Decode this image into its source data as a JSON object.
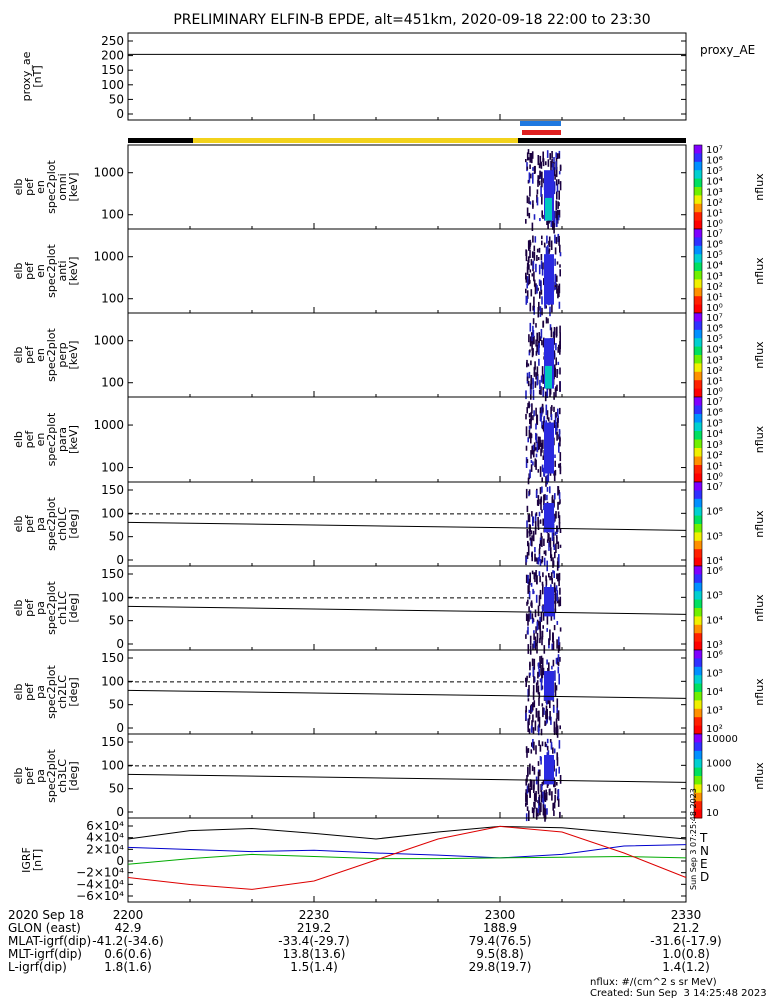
{
  "title": "PRELIMINARY ELFIN-B EPDE, alt=451km, 2020-09-18 22:00 to 23:30",
  "chart_data": [
    {
      "type": "line",
      "panel": "proxy_ae",
      "ylabel": [
        "proxy_ae",
        "[nT]"
      ],
      "legend": "proxy_AE",
      "yticks": [
        "250",
        "200",
        "150",
        "100",
        "50",
        "0"
      ],
      "ylim": [
        0,
        260
      ],
      "series": [
        {
          "x": [
            "22:00",
            "23:30"
          ],
          "values": [
            196,
            196
          ],
          "color": "#000000"
        }
      ]
    },
    {
      "type": "heatmap",
      "panel": "omni",
      "ylabel": [
        "elb",
        "pef",
        "en",
        "spec2plot",
        "omni",
        "[keV]"
      ],
      "yticks": [
        "1000",
        "100"
      ],
      "yscale": "log",
      "ylim": [
        55,
        7000
      ],
      "colorbar": {
        "label": "nflux",
        "ticks": [
          "10⁷",
          "10⁶",
          "10⁵",
          "10⁴",
          "10³",
          "10²",
          "10¹",
          "10⁰"
        ]
      }
    },
    {
      "type": "heatmap",
      "panel": "anti",
      "ylabel": [
        "elb",
        "pef",
        "en",
        "spec2plot",
        "anti",
        "[keV]"
      ],
      "yticks": [
        "1000",
        "100"
      ],
      "yscale": "log",
      "colorbar": {
        "label": "nflux",
        "ticks": [
          "10⁷",
          "10⁶",
          "10⁵",
          "10⁴",
          "10³",
          "10²",
          "10¹",
          "10⁰"
        ]
      }
    },
    {
      "type": "heatmap",
      "panel": "perp",
      "ylabel": [
        "elb",
        "pef",
        "en",
        "spec2plot",
        "perp",
        "[keV]"
      ],
      "yticks": [
        "1000",
        "100"
      ],
      "yscale": "log",
      "colorbar": {
        "label": "nflux",
        "ticks": [
          "10⁷",
          "10⁶",
          "10⁵",
          "10⁴",
          "10³",
          "10²",
          "10¹",
          "10⁰"
        ]
      }
    },
    {
      "type": "heatmap",
      "panel": "para",
      "ylabel": [
        "elb",
        "pef",
        "en",
        "spec2plot",
        "para",
        "[keV]"
      ],
      "yticks": [
        "1000",
        "100"
      ],
      "yscale": "log",
      "colorbar": {
        "label": "nflux",
        "ticks": [
          "10⁷",
          "10⁶",
          "10⁵",
          "10⁴",
          "10³",
          "10²",
          "10¹",
          "10⁰"
        ]
      }
    },
    {
      "type": "heatmap",
      "panel": "ch0LC",
      "ylabel": [
        "elb",
        "pef",
        "pa",
        "spec2plot",
        "ch0LC",
        "[deg]"
      ],
      "yticks": [
        "150",
        "100",
        "50",
        "0"
      ],
      "ylim": [
        0,
        180
      ],
      "colorbar": {
        "label": "nflux",
        "ticks": [
          "10⁷",
          "10⁶",
          "10⁵",
          "10⁴"
        ]
      }
    },
    {
      "type": "heatmap",
      "panel": "ch1LC",
      "ylabel": [
        "elb",
        "pef",
        "pa",
        "spec2plot",
        "ch1LC",
        "[deg]"
      ],
      "yticks": [
        "150",
        "100",
        "50",
        "0"
      ],
      "ylim": [
        0,
        180
      ],
      "colorbar": {
        "label": "nflux",
        "ticks": [
          "10⁶",
          "10⁵",
          "10⁴",
          "10³"
        ]
      }
    },
    {
      "type": "heatmap",
      "panel": "ch2LC",
      "ylabel": [
        "elb",
        "pef",
        "pa",
        "spec2plot",
        "ch2LC",
        "[deg]"
      ],
      "yticks": [
        "150",
        "100",
        "50",
        "0"
      ],
      "ylim": [
        0,
        180
      ],
      "colorbar": {
        "label": "nflux",
        "ticks": [
          "10⁶",
          "10⁵",
          "10⁴",
          "10³",
          "10²"
        ]
      }
    },
    {
      "type": "heatmap",
      "panel": "ch3LC",
      "ylabel": [
        "elb",
        "pef",
        "pa",
        "spec2plot",
        "ch3LC",
        "[deg]"
      ],
      "yticks": [
        "150",
        "100",
        "50",
        "0"
      ],
      "ylim": [
        0,
        180
      ],
      "colorbar": {
        "label": "nflux",
        "ticks": [
          "10000",
          "1000",
          "100",
          "10"
        ]
      }
    },
    {
      "type": "line",
      "panel": "igrf",
      "ylabel": [
        "IGRF",
        "[nT]"
      ],
      "yticks": [
        "6×10⁴",
        "4×10⁴",
        "2×10⁴",
        "0",
        "−2×10⁴",
        "−4×10⁴",
        "−6×10⁴"
      ],
      "ylim": [
        -60000,
        60000
      ],
      "x": [
        0,
        10,
        20,
        30,
        40,
        50,
        60,
        70,
        80,
        90
      ],
      "legend": [
        "T",
        "N",
        "E",
        "D"
      ],
      "series": [
        {
          "name": "T",
          "color": "#000000",
          "values": [
            30000,
            42000,
            45000,
            38000,
            30000,
            40000,
            48000,
            46000,
            38000,
            30000
          ]
        },
        {
          "name": "N",
          "color": "#0000cc",
          "values": [
            18000,
            15000,
            12000,
            14000,
            10000,
            7000,
            3000,
            8000,
            20000,
            22000
          ]
        },
        {
          "name": "E",
          "color": "#00aa00",
          "values": [
            -6000,
            2000,
            8000,
            5000,
            2000,
            2000,
            3000,
            4000,
            5000,
            3000
          ]
        },
        {
          "name": "D",
          "color": "#dd0000",
          "values": [
            -25000,
            -35000,
            -42000,
            -30000,
            0,
            30000,
            48000,
            40000,
            10000,
            -25000
          ]
        }
      ]
    }
  ],
  "x_axis": {
    "ticks": [
      "2200",
      "2230",
      "2300",
      "2330"
    ],
    "rows": [
      {
        "label": "2020 Sep 18",
        "vals": [
          "",
          "",
          "",
          ""
        ]
      },
      {
        "label": "GLON (east)",
        "vals": [
          "42.9",
          "219.2",
          "188.9",
          "21.2"
        ]
      },
      {
        "label": "MLAT-igrf(dip)",
        "vals": [
          "-41.2(-34.6)",
          "-33.4(-29.7)",
          "79.4(76.5)",
          "-31.6(-17.9)"
        ]
      },
      {
        "label": "MLT-igrf(dip)",
        "vals": [
          "0.6(0.6)",
          "13.8(13.6)",
          "9.5(8.8)",
          "1.0(0.8)"
        ]
      },
      {
        "label": "L-igrf(dip)",
        "vals": [
          "1.8(1.6)",
          "1.5(1.4)",
          "29.8(19.7)",
          "1.4(1.2)"
        ]
      }
    ]
  },
  "side_stamp": "Sun Sep  3 07:25:48 2023",
  "footer": {
    "units": "nflux: #/(cm^2 s sr MeV)",
    "created": "Created: Sun Sep  3 14:25:48 2023"
  },
  "colors": {
    "sunlight_bar": "#f2d21b",
    "eclipse_bar": "#000000",
    "science_blue": "#1e78e0",
    "science_red": "#e02020"
  }
}
